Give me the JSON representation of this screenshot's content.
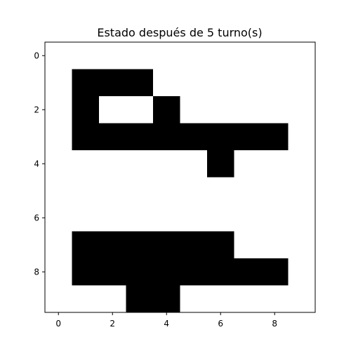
{
  "chart_data": {
    "type": "heatmap",
    "title": "Estado después de 5 turno(s)",
    "xlabel": "",
    "ylabel": "",
    "grid": false,
    "colormap": {
      "0": "#ffffff",
      "1": "#000000"
    },
    "xlim": [
      -0.5,
      9.5
    ],
    "ylim": [
      9.5,
      -0.5
    ],
    "x_ticks": [
      0,
      2,
      4,
      6,
      8
    ],
    "y_ticks": [
      0,
      2,
      4,
      6,
      8
    ],
    "x_tick_labels": [
      "0",
      "2",
      "4",
      "6",
      "8"
    ],
    "y_tick_labels": [
      "0",
      "2",
      "4",
      "6",
      "8"
    ],
    "grid_values": [
      [
        0,
        0,
        0,
        0,
        0,
        0,
        0,
        0,
        0,
        0
      ],
      [
        0,
        1,
        1,
        1,
        0,
        0,
        0,
        0,
        0,
        0
      ],
      [
        0,
        1,
        0,
        0,
        1,
        0,
        0,
        0,
        0,
        0
      ],
      [
        0,
        1,
        1,
        1,
        1,
        1,
        1,
        1,
        1,
        0
      ],
      [
        0,
        0,
        0,
        0,
        0,
        0,
        1,
        0,
        0,
        0
      ],
      [
        0,
        0,
        0,
        0,
        0,
        0,
        0,
        0,
        0,
        0
      ],
      [
        0,
        0,
        0,
        0,
        0,
        0,
        0,
        0,
        0,
        0
      ],
      [
        0,
        1,
        1,
        1,
        1,
        1,
        1,
        0,
        0,
        0
      ],
      [
        0,
        1,
        1,
        1,
        1,
        1,
        1,
        1,
        1,
        0
      ],
      [
        0,
        0,
        0,
        1,
        1,
        0,
        0,
        0,
        0,
        0
      ]
    ]
  }
}
